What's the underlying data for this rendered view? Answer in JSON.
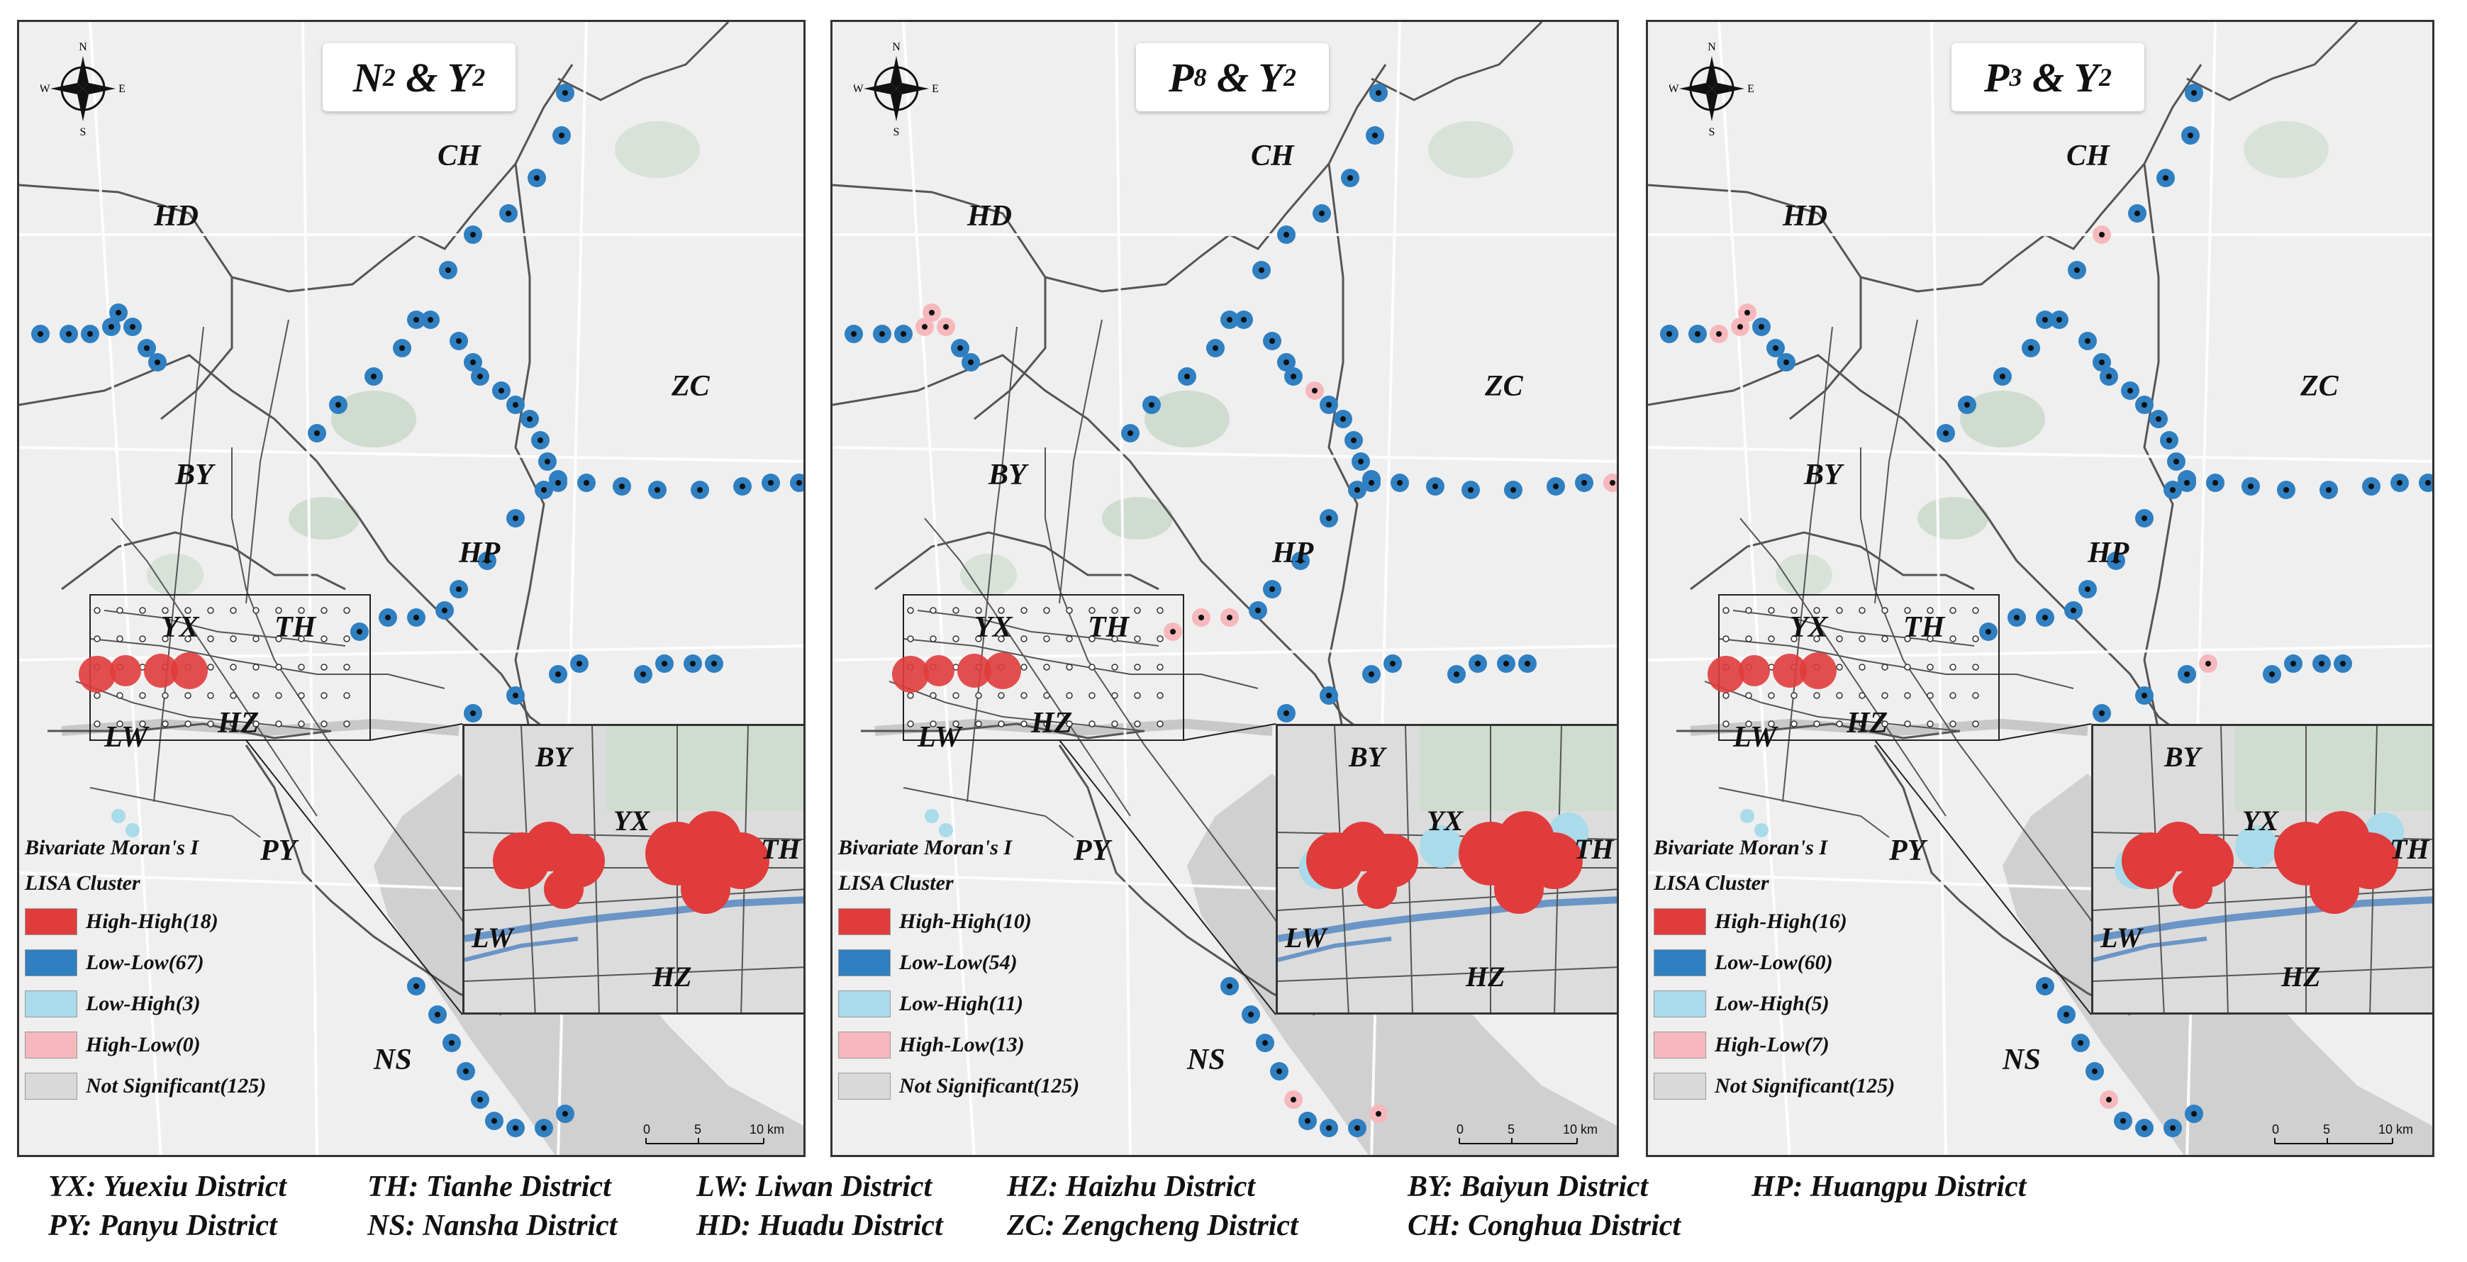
{
  "panels": [
    {
      "title_main": "N",
      "title_sub": "2",
      "title_mid": " & Y",
      "title_sub2": "2",
      "legend": {
        "title1": "Bivariate Moran's I",
        "title2": "LISA Cluster",
        "items": [
          "High-High(18)",
          "Low-Low(67)",
          "Low-High(3)",
          "High-Low(0)",
          "Not Significant(125)"
        ]
      }
    },
    {
      "title_main": "P",
      "title_sub": "8",
      "title_mid": " & Y",
      "title_sub2": "2",
      "legend": {
        "title1": "Bivariate Moran's I",
        "title2": "LISA Cluster",
        "items": [
          "High-High(10)",
          "Low-Low(54)",
          "Low-High(11)",
          "High-Low(13)",
          "Not Significant(125)"
        ]
      }
    },
    {
      "title_main": "P",
      "title_sub": "3",
      "title_mid": " & Y",
      "title_sub2": "2",
      "legend": {
        "title1": "Bivariate Moran's I",
        "title2": "LISA Cluster",
        "items": [
          "High-High(16)",
          "Low-Low(60)",
          "Low-High(5)",
          "High-Low(7)",
          "Not Significant(125)"
        ]
      }
    }
  ],
  "district_labels": {
    "HD": "HD",
    "CH": "CH",
    "ZC": "ZC",
    "BY": "BY",
    "HP": "HP",
    "YX": "YX",
    "TH": "TH",
    "LW": "LW",
    "HZ": "HZ",
    "PY": "PY",
    "NS": "NS"
  },
  "compass": {
    "n": "N",
    "s": "S",
    "e": "E",
    "w": "W"
  },
  "scale": {
    "t0": "0",
    "t1": "5",
    "t2": "10 km"
  },
  "colors": {
    "high_high": "#e03c3c",
    "low_low": "#2f7fc1",
    "low_high": "#a9dbea",
    "high_low": "#f6b8bc",
    "not_significant": "#d9d9d9"
  },
  "abbreviations": [
    "YX: Yuexiu District",
    "TH: Tianhe District",
    "LW: Liwan District",
    "HZ: Haizhu District",
    "BY: Baiyun District",
    "HP: Huangpu District",
    "PY: Panyu District",
    "NS: Nansha District",
    "HD: Huadu District",
    "ZC: Zengcheng District",
    "CH: Conghua District"
  ]
}
